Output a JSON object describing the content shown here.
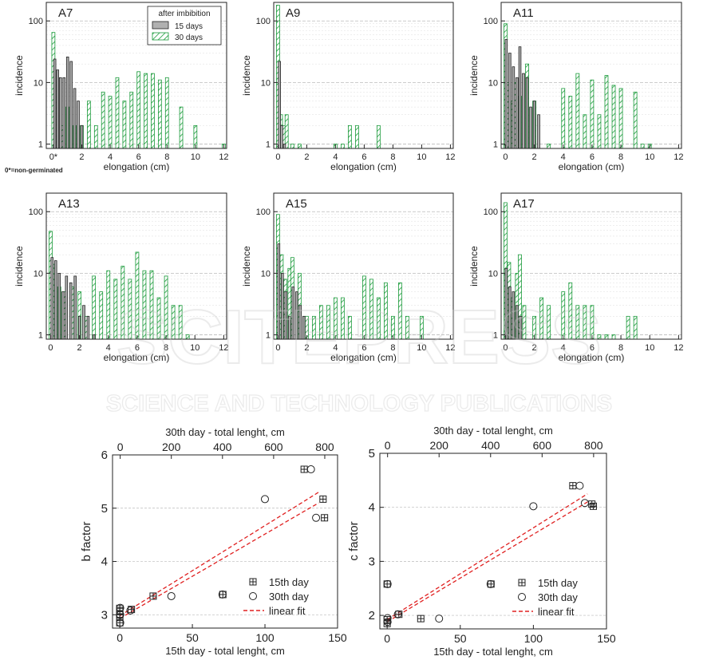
{
  "footnote": "0*=non-germinated",
  "watermark": {
    "line1": "SCITEPRESS",
    "line2": "SCIENCE AND TECHNOLOGY PUBLICATIONS"
  },
  "colors": {
    "day15_fill": "#b0b0b0",
    "day30_stroke": "#1a9a3a",
    "fit": "#e02020",
    "grid": "#bbbbbb"
  },
  "chart_data": [
    {
      "type": "bar",
      "panel": "A7",
      "title": "A7",
      "xlabel": "elongation (cm)",
      "ylabel": "incidence",
      "yscale": "log",
      "xlim": [
        -0.5,
        12.2
      ],
      "ylim": [
        0.85,
        200
      ],
      "xticks": [
        0,
        2,
        4,
        6,
        8,
        10,
        12
      ],
      "xtick_labels": [
        "0*",
        "2",
        "4",
        "6",
        "8",
        "10",
        "12"
      ],
      "yticks": [
        1,
        10,
        100
      ],
      "legend": {
        "title": "after imbibition",
        "position": "top",
        "entries": [
          "15 days",
          "30 days"
        ]
      },
      "series": [
        {
          "name": "15 days",
          "x": [
            0.1,
            0.3,
            0.5,
            0.75,
            1.0,
            1.25,
            1.5,
            1.75,
            2.0
          ],
          "values": [
            24,
            16,
            12,
            12,
            26,
            22,
            8,
            5,
            2
          ]
        },
        {
          "name": "30 days",
          "x": [
            0,
            0.15,
            0.35,
            0.6,
            1.0,
            1.5,
            2.0,
            2.5,
            3.0,
            3.5,
            4.0,
            4.5,
            5.0,
            5.5,
            6.0,
            6.5,
            7.0,
            7.5,
            8.0,
            9.0,
            10.0,
            12.0
          ],
          "values": [
            65,
            10,
            4,
            2,
            4,
            2,
            2,
            5,
            2,
            7,
            6,
            12,
            5,
            7,
            15,
            14,
            14,
            11,
            12,
            4,
            2,
            1
          ]
        }
      ]
    },
    {
      "type": "bar",
      "panel": "A9",
      "title": "A9",
      "xlabel": "elongation (cm)",
      "ylabel": "incidence",
      "yscale": "log",
      "xlim": [
        -0.3,
        12.2
      ],
      "ylim": [
        0.85,
        200
      ],
      "xticks": [
        0,
        2,
        4,
        6,
        8,
        10,
        12
      ],
      "xtick_labels": [
        "0",
        "2",
        "4",
        "6",
        "8",
        "10",
        "12"
      ],
      "yticks": [
        1,
        10,
        100
      ],
      "series": [
        {
          "name": "15 days",
          "x": [
            0.1,
            0.25,
            0.45
          ],
          "values": [
            22,
            2,
            1
          ]
        },
        {
          "name": "30 days",
          "x": [
            0,
            0.2,
            0.4,
            0.6,
            1.0,
            1.5,
            4.0,
            4.5,
            5.0,
            5.5,
            7.0
          ],
          "values": [
            180,
            3,
            2,
            3,
            1,
            1,
            1,
            1,
            2,
            2,
            2
          ]
        }
      ]
    },
    {
      "type": "bar",
      "panel": "A11",
      "title": "A11",
      "xlabel": "elongation (cm)",
      "ylabel": "incidence",
      "yscale": "log",
      "xlim": [
        -0.3,
        12.2
      ],
      "ylim": [
        0.85,
        200
      ],
      "xticks": [
        0,
        2,
        4,
        6,
        8,
        10,
        12
      ],
      "xtick_labels": [
        "0",
        "2",
        "4",
        "6",
        "8",
        "10",
        "12"
      ],
      "yticks": [
        1,
        10,
        100
      ],
      "series": [
        {
          "name": "15 days",
          "x": [
            0.05,
            0.3,
            0.55,
            0.8,
            1.0,
            1.25,
            1.5,
            1.75,
            2.0,
            2.3
          ],
          "values": [
            50,
            30,
            18,
            12,
            38,
            14,
            12,
            4,
            5,
            3
          ]
        },
        {
          "name": "30 days",
          "x": [
            0,
            0.2,
            0.5,
            0.7,
            1.0,
            1.5,
            2.0,
            3.0,
            4.0,
            4.5,
            5.0,
            5.5,
            6.0,
            6.5,
            7.0,
            7.5,
            8.0,
            9.0,
            9.5,
            10.0
          ],
          "values": [
            90,
            10,
            5,
            10,
            6,
            20,
            5,
            1,
            8,
            6,
            14,
            3,
            11,
            3,
            13,
            9,
            8,
            7,
            1,
            1
          ]
        }
      ]
    },
    {
      "type": "bar",
      "panel": "A13",
      "title": "A13",
      "xlabel": "elongation (cm)",
      "ylabel": "incidence",
      "yscale": "log",
      "xlim": [
        -0.3,
        12.2
      ],
      "ylim": [
        0.85,
        200
      ],
      "xticks": [
        0,
        2,
        4,
        6,
        8,
        10,
        12
      ],
      "xtick_labels": [
        "0",
        "2",
        "4",
        "6",
        "8",
        "10",
        "12"
      ],
      "yticks": [
        1,
        10,
        100
      ],
      "series": [
        {
          "name": "15 days",
          "x": [
            0.1,
            0.35,
            0.6,
            0.85,
            1.1,
            1.4,
            1.7,
            2.0,
            2.3,
            2.6,
            3.0
          ],
          "values": [
            18,
            16,
            10,
            5,
            9,
            7,
            9,
            2,
            3,
            2,
            1
          ]
        },
        {
          "name": "30 days",
          "x": [
            0,
            0.3,
            0.6,
            1.0,
            1.5,
            2.0,
            2.5,
            3.0,
            3.5,
            4.0,
            4.5,
            5.0,
            5.5,
            6.0,
            6.5,
            7.0,
            7.5,
            8.0,
            8.5,
            9.0,
            9.5
          ],
          "values": [
            48,
            14,
            6,
            5,
            6,
            5,
            2,
            9,
            5,
            11,
            8,
            13,
            8,
            22,
            11,
            11,
            4,
            9,
            3,
            3,
            1
          ]
        }
      ]
    },
    {
      "type": "bar",
      "panel": "A15",
      "title": "A15",
      "xlabel": "elongation (cm)",
      "ylabel": "incidence",
      "yscale": "log",
      "xlim": [
        -0.3,
        12.2
      ],
      "ylim": [
        0.85,
        200
      ],
      "xticks": [
        0,
        2,
        4,
        6,
        8,
        10,
        12
      ],
      "xtick_labels": [
        "0",
        "2",
        "4",
        "6",
        "8",
        "10",
        "12"
      ],
      "yticks": [
        1,
        10,
        100
      ],
      "series": [
        {
          "name": "15 days",
          "x": [
            0.05,
            0.3,
            0.55,
            0.8,
            1.05,
            1.3,
            1.55,
            1.8
          ],
          "values": [
            30,
            10,
            5,
            2,
            6,
            5,
            3,
            2
          ]
        },
        {
          "name": "30 days",
          "x": [
            0,
            0.25,
            0.5,
            0.8,
            1.0,
            1.5,
            2.0,
            2.5,
            3.0,
            3.5,
            4.0,
            4.5,
            5.0,
            6.0,
            6.5,
            7.0,
            7.5,
            8.0,
            8.5,
            9.0,
            10.0
          ],
          "values": [
            90,
            20,
            8,
            12,
            18,
            10,
            2,
            2,
            3,
            3,
            4,
            4,
            2,
            9,
            8,
            4,
            7,
            2,
            7,
            2,
            2
          ]
        }
      ]
    },
    {
      "type": "bar",
      "panel": "A17",
      "title": "A17",
      "xlabel": "elongation (cm)",
      "ylabel": "incidence",
      "yscale": "log",
      "xlim": [
        -0.3,
        12.2
      ],
      "ylim": [
        0.85,
        200
      ],
      "xticks": [
        0,
        2,
        4,
        6,
        8,
        10,
        12
      ],
      "xtick_labels": [
        "0",
        "2",
        "4",
        "6",
        "8",
        "10",
        "12"
      ],
      "yticks": [
        1,
        10,
        100
      ],
      "series": [
        {
          "name": "15 days",
          "x": [
            0.05,
            0.3,
            0.55,
            0.8,
            1.05
          ],
          "values": [
            12,
            6,
            5,
            3,
            2
          ]
        },
        {
          "name": "30 days",
          "x": [
            0,
            0.25,
            0.5,
            0.8,
            1.0,
            1.3,
            2.0,
            2.5,
            3.0,
            4.0,
            4.5,
            5.0,
            5.5,
            6.0,
            6.5,
            7.0,
            7.5,
            8.5,
            9.0
          ],
          "values": [
            140,
            15,
            4,
            10,
            20,
            3,
            2,
            4,
            3,
            5,
            7,
            3,
            3,
            3,
            1,
            1,
            1,
            2,
            2
          ]
        }
      ]
    },
    {
      "type": "scatter",
      "panel": "b",
      "xlabel": "15th day - total lenght, cm",
      "x2label": "30th day - total lenght, cm",
      "ylabel": "b factor",
      "xlim": [
        -5,
        150
      ],
      "x2lim": [
        -30,
        850
      ],
      "ylim": [
        2.75,
        6
      ],
      "xticks": [
        0,
        50,
        100,
        150
      ],
      "x2ticks": [
        0,
        200,
        400,
        600,
        800
      ],
      "yticks": [
        3,
        4,
        5,
        6
      ],
      "legend": {
        "position": "bottom-right",
        "entries": [
          "15th day",
          "30th day",
          "linear fit"
        ]
      },
      "series": [
        {
          "name": "15th day",
          "axis": "bottom",
          "points": [
            [
              0,
              2.85
            ],
            [
              0,
              2.95
            ],
            [
              0,
              3.0
            ],
            [
              0,
              3.08
            ],
            [
              0,
              3.12
            ],
            [
              8,
              3.1
            ],
            [
              23,
              3.35
            ],
            [
              71,
              3.38
            ],
            [
              127,
              5.73
            ],
            [
              140,
              5.17
            ],
            [
              141,
              4.82
            ]
          ]
        },
        {
          "name": "30th day",
          "axis": "top",
          "points": [
            [
              0,
              2.85
            ],
            [
              0,
              3.0
            ],
            [
              0,
              3.13
            ],
            [
              40,
              3.08
            ],
            [
              200,
              3.35
            ],
            [
              400,
              3.38
            ],
            [
              566,
              5.17
            ],
            [
              746,
              5.73
            ],
            [
              766,
              4.82
            ]
          ]
        },
        {
          "name": "linear fit",
          "lines": [
            [
              [
                0,
                2.98
              ],
              [
                137,
                5.3
              ]
            ],
            [
              [
                0,
                2.93
              ],
              [
                137,
                5.1
              ]
            ]
          ]
        }
      ]
    },
    {
      "type": "scatter",
      "panel": "c",
      "xlabel": "15th day - total lenght, cm",
      "x2label": "30th day - total lenght, cm",
      "ylabel": "c factor",
      "xlim": [
        -5,
        150
      ],
      "x2lim": [
        -30,
        850
      ],
      "ylim": [
        1.75,
        5
      ],
      "xticks": [
        0,
        50,
        100,
        150
      ],
      "x2ticks": [
        0,
        200,
        400,
        600,
        800
      ],
      "yticks": [
        2,
        3,
        4,
        5
      ],
      "legend": {
        "position": "bottom-right",
        "entries": [
          "15th day",
          "30th day",
          "linear fit"
        ]
      },
      "series": [
        {
          "name": "15th day",
          "axis": "bottom",
          "points": [
            [
              0,
              1.85
            ],
            [
              0,
              1.92
            ],
            [
              0,
              2.58
            ],
            [
              8,
              2.02
            ],
            [
              23,
              1.94
            ],
            [
              71,
              2.58
            ],
            [
              127,
              4.4
            ],
            [
              140,
              4.06
            ],
            [
              141,
              4.02
            ]
          ]
        },
        {
          "name": "30th day",
          "axis": "top",
          "points": [
            [
              0,
              1.88
            ],
            [
              0,
              1.95
            ],
            [
              0,
              2.58
            ],
            [
              40,
              2.02
            ],
            [
              200,
              1.94
            ],
            [
              400,
              2.58
            ],
            [
              566,
              4.02
            ],
            [
              746,
              4.4
            ],
            [
              766,
              4.08
            ]
          ]
        },
        {
          "name": "linear fit",
          "lines": [
            [
              [
                0,
                1.92
              ],
              [
                137,
                4.25
              ]
            ],
            [
              [
                0,
                1.88
              ],
              [
                137,
                4.1
              ]
            ]
          ]
        }
      ]
    }
  ]
}
